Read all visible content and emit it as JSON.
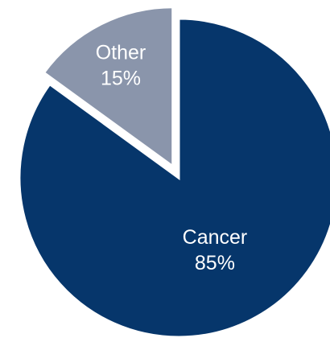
{
  "chart_data": {
    "type": "pie",
    "title": "",
    "categories": [
      "Cancer",
      "Other"
    ],
    "values": [
      85,
      15
    ],
    "labels": [
      {
        "name": "Cancer",
        "percent": "85%"
      },
      {
        "name": "Other",
        "percent": "15%"
      }
    ],
    "colors": [
      "#06366b",
      "#8a95ab"
    ],
    "exploded": "Other",
    "start_angle_deg": 0,
    "direction": "clockwise",
    "legend": "none",
    "data_labels": "inside"
  }
}
